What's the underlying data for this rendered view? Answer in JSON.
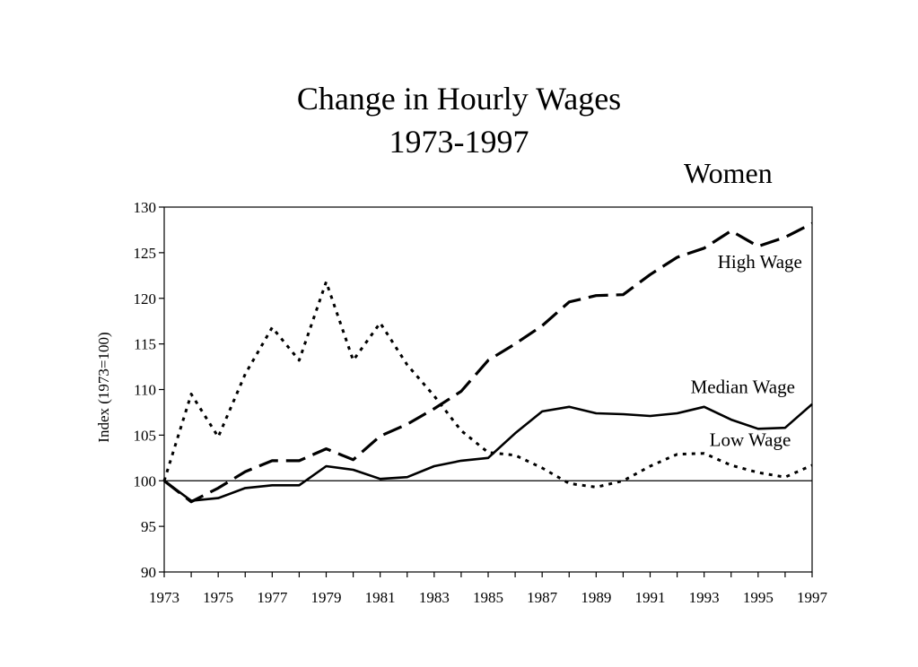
{
  "chart_data": {
    "type": "line",
    "title": "Change in Hourly Wages",
    "title_line2": "1973-1997",
    "subtitle": "Women",
    "xlabel": "",
    "ylabel": "Index (1973=100)",
    "ylim": [
      90,
      130
    ],
    "yticks": [
      "90",
      "95",
      "100",
      "105",
      "110",
      "115",
      "120",
      "125",
      "130"
    ],
    "xlim": [
      1973,
      1997
    ],
    "xticks": [
      "1973",
      "1975",
      "1977",
      "1979",
      "1981",
      "1983",
      "1985",
      "1987",
      "1989",
      "1991",
      "1993",
      "1995",
      "1997"
    ],
    "reference_line": 100,
    "grid": false,
    "legend": "inline labels",
    "x": [
      1973,
      1974,
      1975,
      1976,
      1977,
      1978,
      1979,
      1980,
      1981,
      1982,
      1983,
      1984,
      1985,
      1986,
      1987,
      1988,
      1989,
      1990,
      1991,
      1992,
      1993,
      1994,
      1995,
      1996,
      1997
    ],
    "series": [
      {
        "name": "High Wage",
        "style": "long-dash",
        "values": [
          100,
          97.7,
          99.2,
          101.0,
          102.2,
          102.2,
          103.5,
          102.3,
          104.9,
          106.2,
          107.9,
          109.8,
          113.2,
          115.0,
          117.0,
          119.6,
          120.3,
          120.4,
          122.6,
          124.5,
          125.5,
          127.4,
          125.7,
          126.7,
          128.2
        ]
      },
      {
        "name": "Median Wage",
        "style": "solid",
        "values": [
          100,
          97.8,
          98.1,
          99.2,
          99.5,
          99.5,
          101.6,
          101.2,
          100.2,
          100.4,
          101.6,
          102.2,
          102.5,
          105.2,
          107.6,
          108.1,
          107.4,
          107.3,
          107.1,
          107.4,
          108.1,
          106.7,
          105.7,
          105.8,
          108.4
        ]
      },
      {
        "name": "Low Wage",
        "style": "dotted",
        "values": [
          100,
          109.5,
          104.8,
          111.7,
          116.8,
          113.2,
          121.8,
          113.2,
          117.3,
          112.7,
          109.3,
          105.5,
          103.1,
          102.8,
          101.4,
          99.7,
          99.3,
          100.0,
          101.6,
          102.9,
          103.0,
          101.7,
          100.9,
          100.4,
          101.7
        ]
      }
    ]
  }
}
